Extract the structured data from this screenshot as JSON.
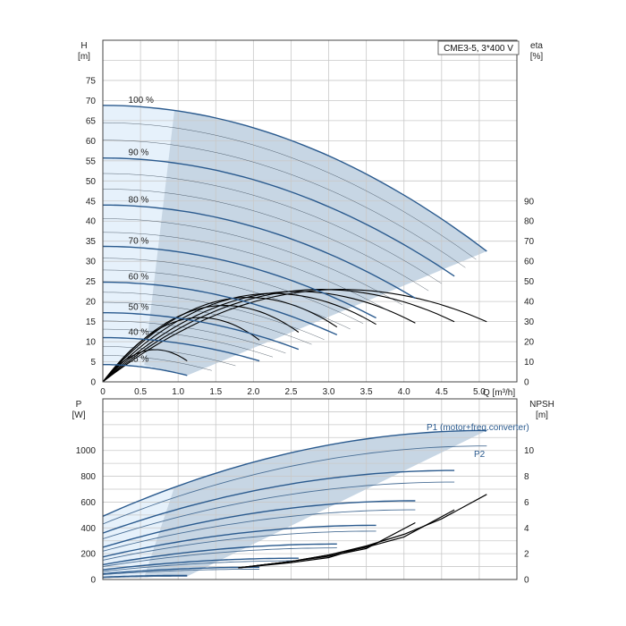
{
  "chart_data": [
    {
      "type": "line",
      "panel": "head",
      "model_label": "CME3-5, 3*400 V",
      "xlabel": "Q [m³/h]",
      "ylabel_left": [
        "H",
        "[m]"
      ],
      "ylabel_right": [
        "eta",
        "[%]"
      ],
      "xlim": [
        0,
        5.5
      ],
      "ylim": [
        0,
        85
      ],
      "eta_lim": [
        0,
        170
      ],
      "x_ticks": [
        "0",
        "0.5",
        "1.0",
        "1.5",
        "2.0",
        "2.5",
        "3.0",
        "3.5",
        "4.0",
        "4.5",
        "5.0"
      ],
      "y_ticks": [
        "0",
        "5",
        "10",
        "15",
        "20",
        "25",
        "30",
        "35",
        "40",
        "45",
        "50",
        "55",
        "60",
        "65",
        "70",
        "75"
      ],
      "eta_ticks": [
        "0",
        "10",
        "20",
        "30",
        "40",
        "50",
        "60",
        "70",
        "80",
        "90"
      ],
      "grid": true,
      "colors": {
        "head_curve": "#2a5a8e",
        "thin_curve": "#111111",
        "eff_curve": "#000000",
        "area_main": "#c7d6e4",
        "area_light": "#e6f1fb"
      },
      "head_curves": [
        {
          "name": "100 %",
          "speed_pct": 100,
          "H0": 68.8,
          "Qmax": 5.1,
          "Hend": 32.5
        },
        {
          "name": "90 %",
          "speed_pct": 90,
          "H0": 55.7,
          "Qmax": 4.67,
          "Hend": 26.3
        },
        {
          "name": "80 %",
          "speed_pct": 80,
          "H0": 44.0,
          "Qmax": 4.15,
          "Hend": 20.8
        },
        {
          "name": "70 %",
          "speed_pct": 70,
          "H0": 33.7,
          "Qmax": 3.63,
          "Hend": 15.9
        },
        {
          "name": "60 %",
          "speed_pct": 60,
          "H0": 24.8,
          "Qmax": 3.11,
          "Hend": 11.7
        },
        {
          "name": "50 %",
          "speed_pct": 50,
          "H0": 17.2,
          "Qmax": 2.6,
          "Hend": 8.1
        },
        {
          "name": "40 %",
          "speed_pct": 40,
          "H0": 11.0,
          "Qmax": 2.08,
          "Hend": 5.2
        },
        {
          "name": "25 %",
          "speed_pct": 25,
          "H0": 4.3,
          "Qmax": 1.12,
          "Hend": 1.6
        }
      ],
      "efficiency_curves": [
        {
          "speed_pct": 100,
          "peak_eta": 46,
          "Qmax": 5.1
        },
        {
          "speed_pct": 90,
          "peak_eta": 46,
          "Qmax": 4.67
        },
        {
          "speed_pct": 80,
          "peak_eta": 45,
          "Qmax": 4.15
        },
        {
          "speed_pct": 70,
          "peak_eta": 44,
          "Qmax": 3.63
        },
        {
          "speed_pct": 60,
          "peak_eta": 42,
          "Qmax": 3.11
        },
        {
          "speed_pct": 50,
          "peak_eta": 38,
          "Qmax": 2.6
        },
        {
          "speed_pct": 40,
          "peak_eta": 32,
          "Qmax": 2.08
        },
        {
          "speed_pct": 25,
          "peak_eta": 16,
          "Qmax": 1.12
        }
      ]
    },
    {
      "type": "line",
      "panel": "power",
      "xlabel": "",
      "ylabel_left": [
        "P",
        "[W]"
      ],
      "ylabel_right": [
        "NPSH",
        "[m]"
      ],
      "xlim": [
        0,
        5.5
      ],
      "ylim": [
        0,
        1400
      ],
      "npsh_lim": [
        0,
        14
      ],
      "y_ticks": [
        "0",
        "200",
        "400",
        "600",
        "800",
        "1000"
      ],
      "npsh_ticks": [
        "0",
        "2",
        "4",
        "6",
        "8",
        "10"
      ],
      "grid": true,
      "labels": {
        "p1": "P1 (motor+freq.converter)",
        "p2": "P2"
      },
      "colors": {
        "p1_curve": "#2a5a8e",
        "p2_curve": "#4a6f96",
        "npsh_curve": "#000000"
      },
      "power_curves": [
        {
          "speed_pct": 100,
          "P1_start": 490,
          "P1_end": 1155,
          "P2_start": 430,
          "P2_end": 1035,
          "Qmax": 5.1
        },
        {
          "speed_pct": 90,
          "P1_start": 360,
          "P1_end": 845,
          "P2_start": 315,
          "P2_end": 755,
          "Qmax": 4.67
        },
        {
          "speed_pct": 80,
          "P1_start": 250,
          "P1_end": 610,
          "P2_start": 220,
          "P2_end": 540,
          "Qmax": 4.15
        },
        {
          "speed_pct": 70,
          "P1_start": 175,
          "P1_end": 420,
          "P2_start": 150,
          "P2_end": 375,
          "Qmax": 3.63
        },
        {
          "speed_pct": 60,
          "P1_start": 115,
          "P1_end": 275,
          "P2_start": 100,
          "P2_end": 245,
          "Qmax": 3.11
        },
        {
          "speed_pct": 50,
          "P1_start": 75,
          "P1_end": 165,
          "P2_start": 62,
          "P2_end": 145,
          "Qmax": 2.6
        },
        {
          "speed_pct": 40,
          "P1_start": 45,
          "P1_end": 95,
          "P2_start": 38,
          "P2_end": 80,
          "Qmax": 2.08
        },
        {
          "speed_pct": 25,
          "P1_start": 18,
          "P1_end": 32,
          "P2_start": 14,
          "P2_end": 25,
          "Qmax": 1.12
        }
      ],
      "npsh_curves": [
        {
          "speed_pct": 100,
          "Q": [
            1.8,
            2.5,
            3.0,
            3.5,
            4.0,
            4.5,
            5.1
          ],
          "npsh": [
            0.9,
            1.4,
            1.9,
            2.6,
            3.5,
            4.7,
            6.6
          ]
        },
        {
          "speed_pct": 90,
          "Q": [
            1.8,
            2.5,
            3.0,
            3.5,
            4.0,
            4.67
          ],
          "npsh": [
            0.9,
            1.4,
            1.9,
            2.5,
            3.3,
            5.4
          ]
        },
        {
          "speed_pct": 80,
          "Q": [
            1.8,
            2.5,
            3.0,
            3.5,
            4.15
          ],
          "npsh": [
            0.9,
            1.4,
            1.8,
            2.4,
            4.4
          ]
        },
        {
          "speed_pct": 70,
          "Q": [
            1.8,
            2.5,
            3.0,
            3.63
          ],
          "npsh": [
            0.9,
            1.3,
            1.7,
            2.8
          ]
        }
      ]
    }
  ]
}
